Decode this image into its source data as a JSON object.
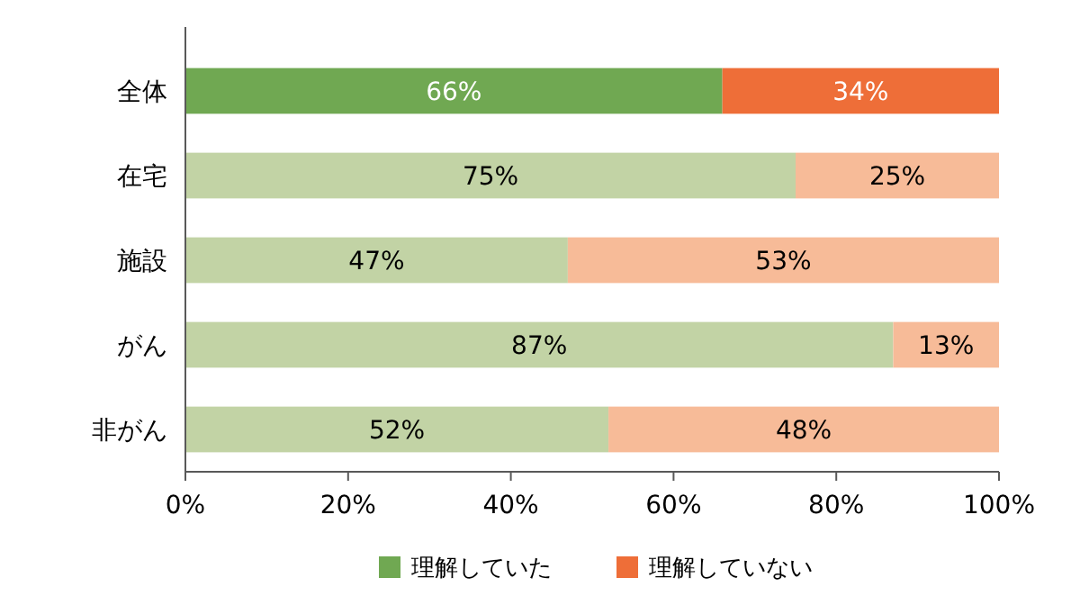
{
  "chart_data": {
    "type": "bar",
    "orientation": "horizontal",
    "stacked": true,
    "categories": [
      "全体",
      "在宅",
      "施設",
      "がん",
      "非がん"
    ],
    "series": [
      {
        "name": "理解していた",
        "color": "#70a852",
        "colors": [
          "#70a852",
          "#c2d3a5",
          "#c2d3a5",
          "#c2d3a5",
          "#c2d3a5"
        ],
        "values": [
          66,
          75,
          47,
          87,
          52
        ],
        "value_labels": [
          "66%",
          "75%",
          "47%",
          "87%",
          "52%"
        ]
      },
      {
        "name": "理解していない",
        "color": "#ee6e38",
        "colors": [
          "#ee6e38",
          "#f7bb98",
          "#f7bb98",
          "#f7bb98",
          "#f7bb98"
        ],
        "values": [
          34,
          25,
          53,
          13,
          48
        ],
        "value_labels": [
          "34%",
          "25%",
          "53%",
          "13%",
          "48%"
        ]
      }
    ],
    "xlim": [
      0,
      100
    ],
    "xticks": [
      {
        "value": 0,
        "label": "0%"
      },
      {
        "value": 20,
        "label": "20%"
      },
      {
        "value": 40,
        "label": "40%"
      },
      {
        "value": 60,
        "label": "60%"
      },
      {
        "value": 80,
        "label": "80%"
      },
      {
        "value": 100,
        "label": "100%"
      }
    ],
    "legend": "bottom",
    "grid": false
  }
}
